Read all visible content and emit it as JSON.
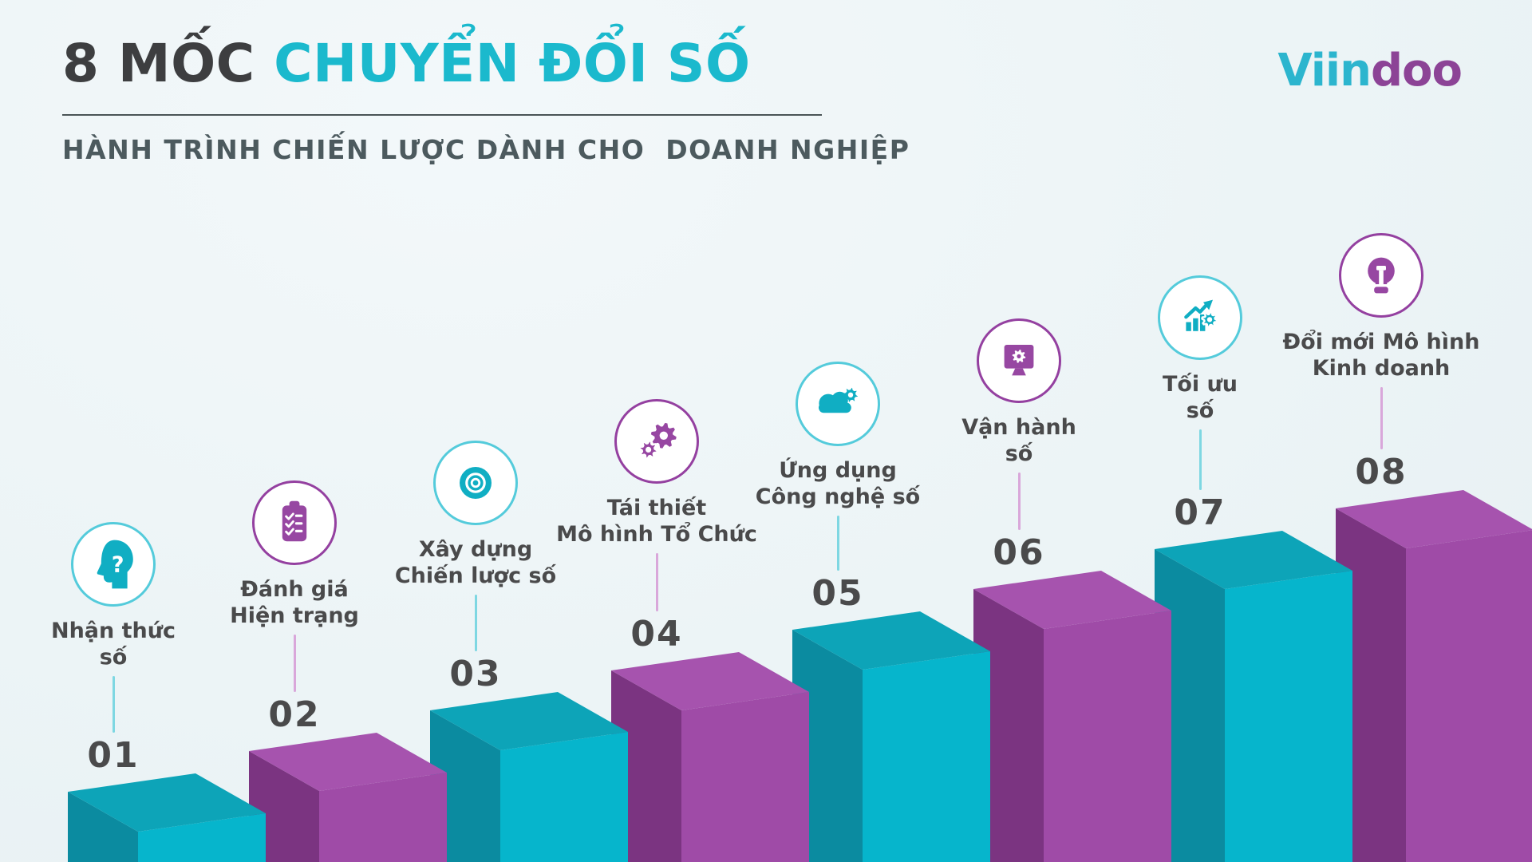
{
  "header": {
    "title_dark": "8 MỐC ",
    "title_accent": "CHUYỂN ĐỔI SỐ",
    "subtitle": "HÀNH TRÌNH CHIẾN LƯỢC DÀNH CHO  DOANH NGHIỆP",
    "logo": {
      "part1": "Viin",
      "part2": "doo",
      "color1": "#2cb5ce",
      "color2": "#8c4396"
    }
  },
  "theme": {
    "text": "#4a4a4b",
    "title_dark": "#3d3e40",
    "title_accent": "#1bb9cd",
    "background": "#edf4f6",
    "teal": {
      "border": "#54cbdb",
      "glyph": "#10aec3",
      "connector": "#7ed7e2",
      "bar_top": "#0da4b8",
      "bar_front": "#06b5cc",
      "bar_side": "#0b8ba0"
    },
    "purple": {
      "border": "#9440a0",
      "glyph": "#9747a2",
      "connector": "#d9a7da",
      "bar_top": "#a653ae",
      "bar_front": "#9f4ba7",
      "bar_side": "#7b3481"
    }
  },
  "milestones": [
    {
      "number": "01",
      "label_lines": [
        "Nhận thức",
        "số"
      ],
      "color": "teal",
      "icon": "head-question-icon"
    },
    {
      "number": "02",
      "label_lines": [
        "Đánh giá",
        "Hiện trạng"
      ],
      "color": "purple",
      "icon": "clipboard-checklist-icon"
    },
    {
      "number": "03",
      "label_lines": [
        "Xây dựng",
        "Chiến lược số"
      ],
      "color": "teal",
      "icon": "target-icon"
    },
    {
      "number": "04",
      "label_lines": [
        "Tái thiết",
        "Mô hình Tổ Chức"
      ],
      "color": "purple",
      "icon": "gears-icon"
    },
    {
      "number": "05",
      "label_lines": [
        "Ứng dụng",
        "Công nghệ số"
      ],
      "color": "teal",
      "icon": "cloud-gear-icon"
    },
    {
      "number": "06",
      "label_lines": [
        "Vận hành",
        "số"
      ],
      "color": "purple",
      "icon": "monitor-gear-icon"
    },
    {
      "number": "07",
      "label_lines": [
        "Tối ưu",
        "số"
      ],
      "color": "teal",
      "icon": "chart-growth-gear-icon"
    },
    {
      "number": "08",
      "label_lines": [
        "Đổi mới Mô hình",
        "Kinh doanh"
      ],
      "color": "purple",
      "icon": "lightbulb-icon"
    }
  ]
}
